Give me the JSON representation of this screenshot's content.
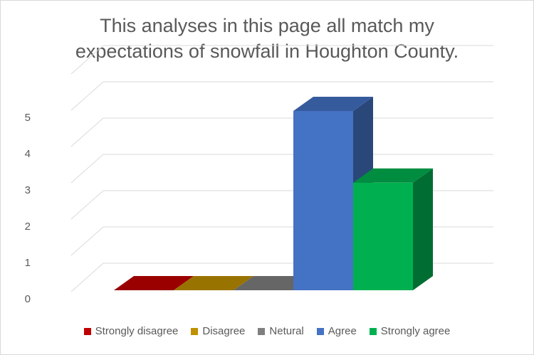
{
  "chart_data": {
    "type": "bar",
    "style": "3d-column",
    "title": "This analyses in this page all match my expectations of snowfall in Houghton County.",
    "title_lines": [
      "This analyses in this page all match my",
      "expectations of snowfall in Houghton County."
    ],
    "categories": [
      "Strongly disagree",
      "Disagree",
      "Netural",
      "Agree",
      "Strongly agree"
    ],
    "values": [
      0,
      0,
      0,
      5,
      3
    ],
    "colors": [
      "#c00000",
      "#bf9000",
      "#7f7f7f",
      "#4472c4",
      "#00b050"
    ],
    "ylim": [
      0,
      5
    ],
    "yticks": [
      "0",
      "1",
      "2",
      "3",
      "4",
      "5"
    ],
    "grid": true,
    "legend_position": "bottom"
  }
}
